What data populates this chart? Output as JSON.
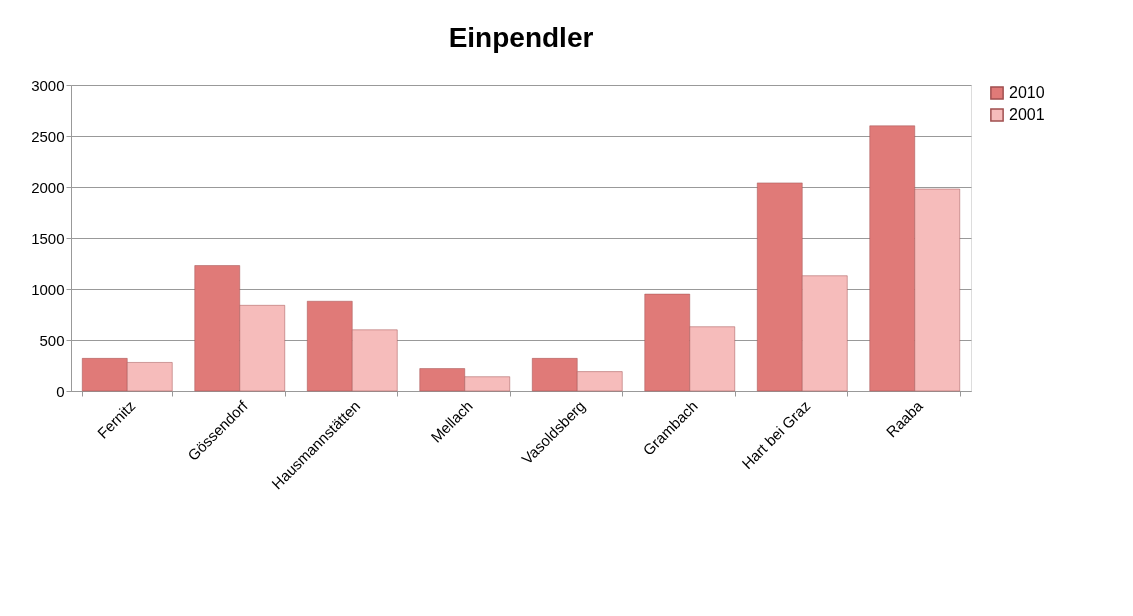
{
  "chart_data": {
    "type": "bar",
    "title": "Einpendler",
    "categories": [
      "Fernitz",
      "Gössendorf",
      "Hausmannstätten",
      "Mellach",
      "Vasoldsberg",
      "Grambach",
      "Hart bei Graz",
      "Raaba"
    ],
    "series": [
      {
        "name": "2010",
        "color": "#e07a78",
        "values": [
          320,
          1230,
          880,
          220,
          320,
          950,
          2040,
          2600
        ]
      },
      {
        "name": "2001",
        "color": "#f6bcbb",
        "values": [
          280,
          840,
          600,
          140,
          190,
          630,
          1130,
          1980
        ]
      }
    ],
    "ylim": [
      0,
      3000
    ],
    "yticks": [
      0,
      500,
      1000,
      1500,
      2000,
      2500,
      3000
    ],
    "grid": "y",
    "legend": "right"
  }
}
